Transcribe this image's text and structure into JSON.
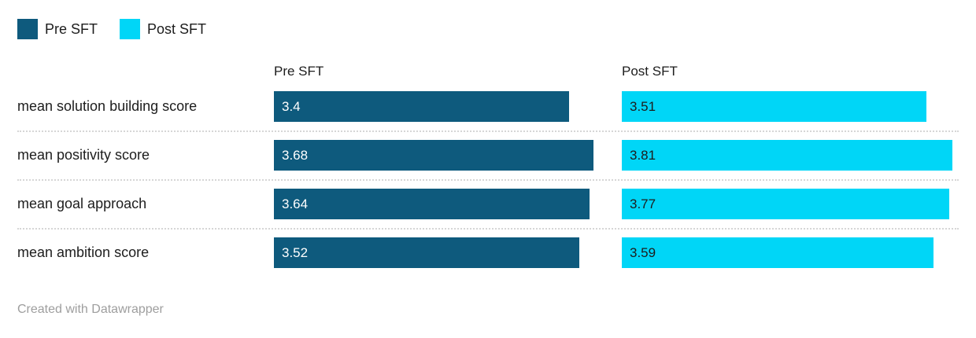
{
  "legend": {
    "items": [
      {
        "id": "pre",
        "label": "Pre SFT"
      },
      {
        "id": "post",
        "label": "Post SFT"
      }
    ]
  },
  "columns": {
    "pre_header": "Pre SFT",
    "post_header": "Post SFT"
  },
  "footer": {
    "text": "Created with Datawrapper"
  },
  "colors": {
    "pre": "#0e5a7d",
    "post": "#00d6f7",
    "text": "#1d1d1d",
    "value_on_pre": "#ffffff",
    "value_on_post": "#1d1d1d",
    "separator": "#d6d6d6",
    "footer_text": "#9e9e9e"
  },
  "chart_data": {
    "type": "bar",
    "orientation": "horizontal",
    "title": "",
    "categories": [
      "mean solution building score",
      "mean positivity score",
      "mean goal approach",
      "mean ambition score"
    ],
    "series": [
      {
        "name": "Pre SFT",
        "values": [
          3.4,
          3.68,
          3.64,
          3.52
        ]
      },
      {
        "name": "Post SFT",
        "values": [
          3.51,
          3.81,
          3.77,
          3.59
        ]
      }
    ],
    "value_labels": [
      [
        "3.4",
        "3.68",
        "3.64",
        "3.52"
      ],
      [
        "3.51",
        "3.81",
        "3.77",
        "3.59"
      ]
    ],
    "value_range": [
      0,
      3.81
    ],
    "value_labels_shown": true,
    "grid": "dotted-row-separators",
    "legend_position": "top-left"
  }
}
